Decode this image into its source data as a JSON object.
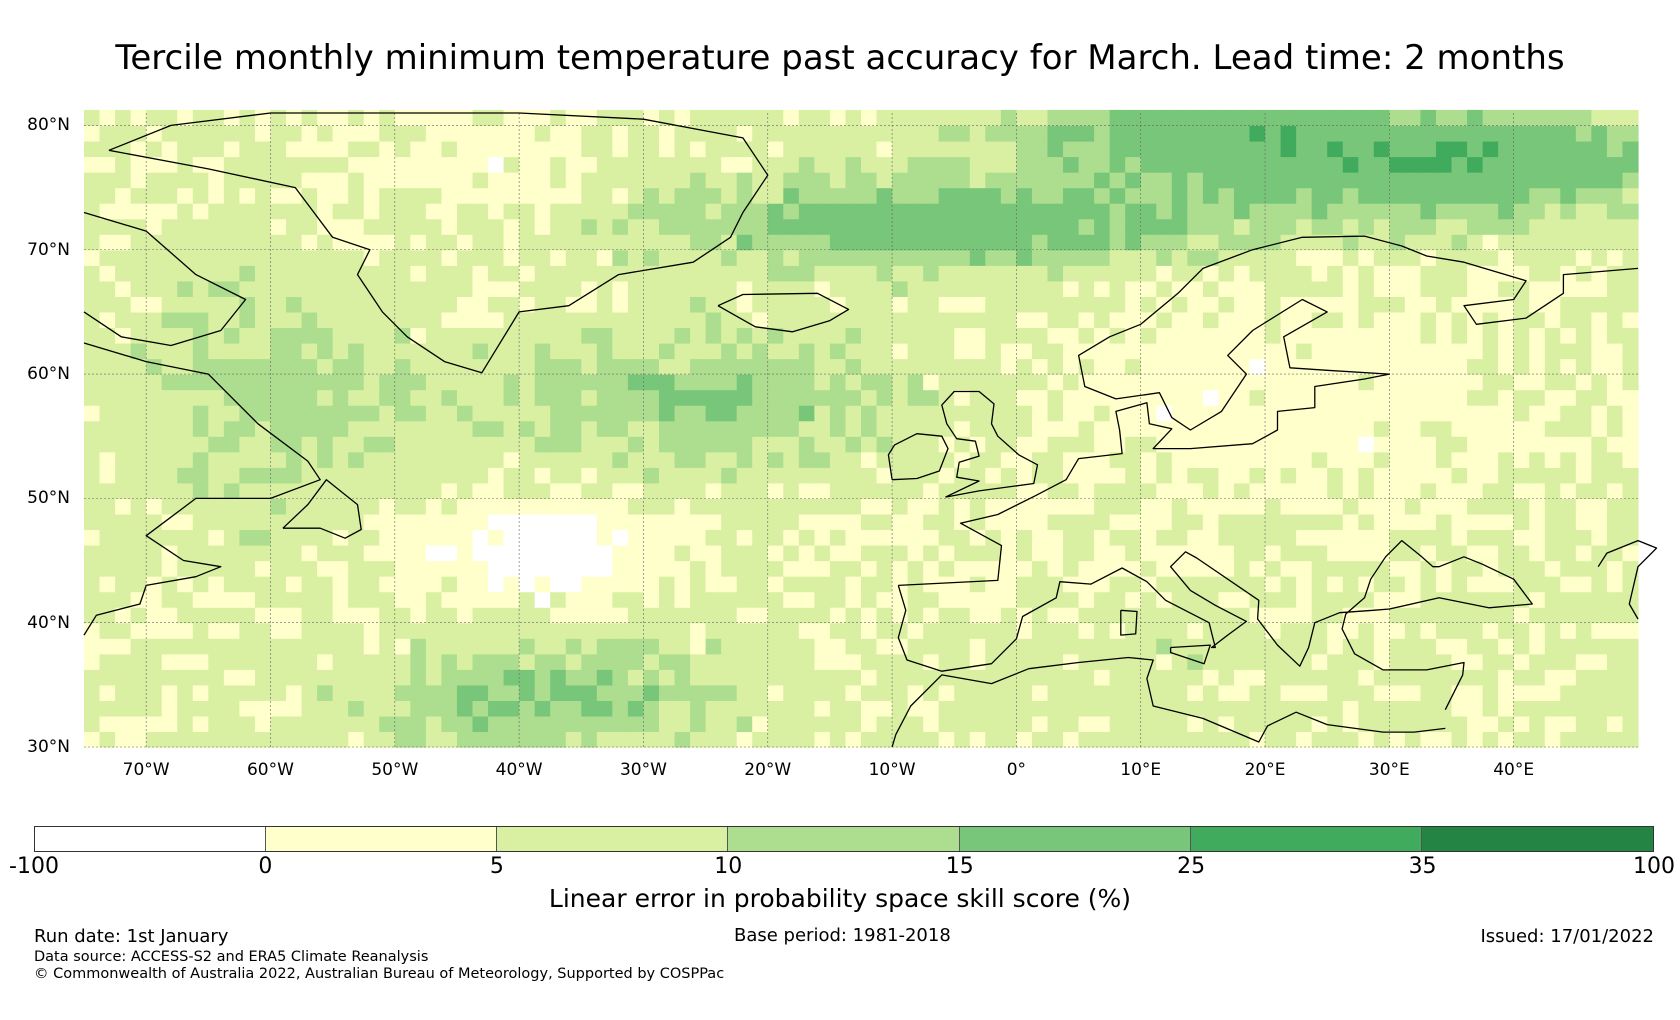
{
  "title": "Tercile monthly minimum temperature past accuracy for March. Lead time: 2 months",
  "map": {
    "extent": {
      "lon_min": -75,
      "lon_max": 50,
      "lat_min": 30,
      "lat_max": 81
    },
    "lat_ticks": [
      {
        "value": 30,
        "label": "30°N"
      },
      {
        "value": 40,
        "label": "40°N"
      },
      {
        "value": 50,
        "label": "50°N"
      },
      {
        "value": 60,
        "label": "60°N"
      },
      {
        "value": 70,
        "label": "70°N"
      },
      {
        "value": 80,
        "label": "80°N"
      }
    ],
    "lon_ticks": [
      {
        "value": -70,
        "label": "70°W"
      },
      {
        "value": -60,
        "label": "60°W"
      },
      {
        "value": -50,
        "label": "50°W"
      },
      {
        "value": -40,
        "label": "40°W"
      },
      {
        "value": -30,
        "label": "30°W"
      },
      {
        "value": -20,
        "label": "20°W"
      },
      {
        "value": -10,
        "label": "10°W"
      },
      {
        "value": 0,
        "label": "0°"
      },
      {
        "value": 10,
        "label": "10°E"
      },
      {
        "value": 20,
        "label": "20°E"
      },
      {
        "value": 30,
        "label": "30°E"
      },
      {
        "value": 40,
        "label": "40°E"
      }
    ],
    "gridlines": true,
    "coastline_color": "#000000"
  },
  "colorbar": {
    "label": "Linear error in probability space skill score (%)",
    "boundaries": [
      "-100",
      "0",
      "5",
      "10",
      "15",
      "25",
      "35",
      "100"
    ],
    "colors": [
      "#ffffff",
      "#ffffcc",
      "#d9f0a3",
      "#addd8e",
      "#78c679",
      "#41ab5d",
      "#238443"
    ]
  },
  "footer": {
    "run_date": "Run date: 1st January",
    "base_period": "Base period: 1981-2018",
    "issued": "Issued: 17/01/2022",
    "data_source": "Data source: ACCESS-S2 and ERA5 Climate Reanalysis",
    "copyright": "© Commonwealth of Australia 2022, Australian Bureau of Meteorology, Supported by COSPPac"
  }
}
